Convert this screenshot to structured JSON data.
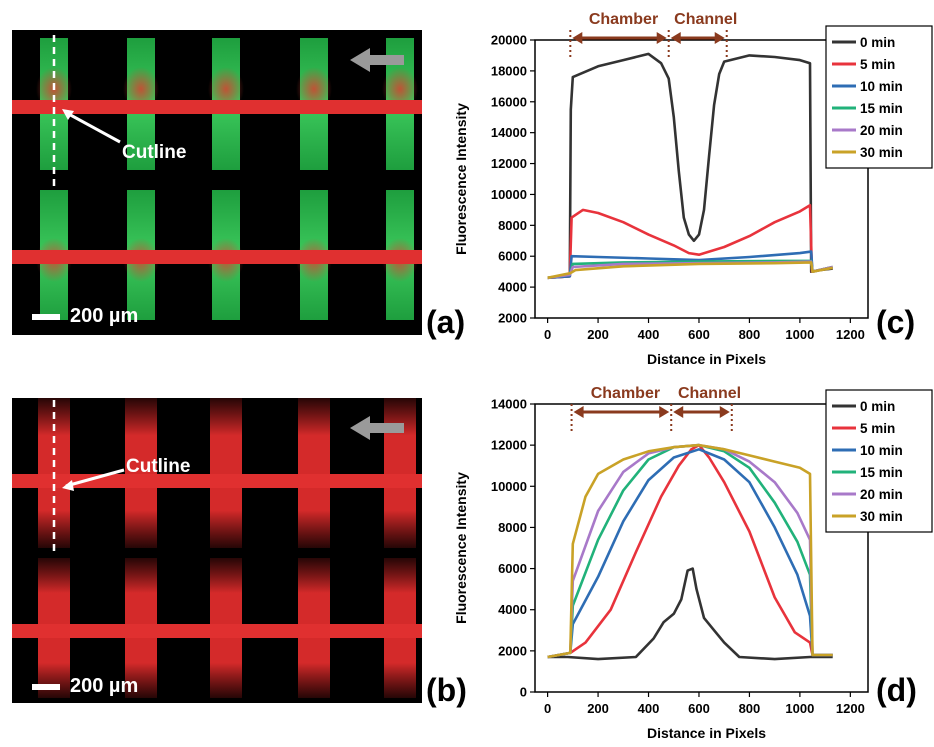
{
  "panels": {
    "a": {
      "letter": "(a)",
      "cutline_label": "Cutline",
      "scale_label": "200 µm"
    },
    "b": {
      "letter": "(b)",
      "cutline_label": "Cutline",
      "scale_label": "200 µm"
    },
    "c": {
      "letter": "(c)"
    },
    "d": {
      "letter": "(d)"
    }
  },
  "colors": {
    "0 min": "#333333",
    "5 min": "#e8333c",
    "10 min": "#2e6db4",
    "15 min": "#21b27a",
    "20 min": "#a879c9",
    "30 min": "#c9a227",
    "annotation": "#8a3a1e",
    "green_chamber": "#22b24c",
    "red_channel": "#e03030"
  },
  "chart_data": [
    {
      "id": "c",
      "type": "line",
      "xlabel": "Distance in Pixels",
      "ylabel": "Fluorescence Intensity",
      "xlim": [
        -50,
        1270
      ],
      "ylim": [
        2000,
        20000
      ],
      "xticks": [
        0,
        200,
        400,
        600,
        800,
        1000,
        1200
      ],
      "yticks": [
        2000,
        4000,
        6000,
        8000,
        10000,
        12000,
        14000,
        16000,
        18000,
        20000
      ],
      "annotations": {
        "chamber": "Chamber",
        "channel": "Channel",
        "chamber_range": [
          90,
          480
        ],
        "channel_range": [
          480,
          710
        ]
      },
      "legend": "right",
      "series": [
        {
          "name": "0 min",
          "points": [
            [
              0,
              4600
            ],
            [
              88,
              4700
            ],
            [
              92,
              15500
            ],
            [
              100,
              17600
            ],
            [
              200,
              18300
            ],
            [
              300,
              18700
            ],
            [
              400,
              19100
            ],
            [
              450,
              18500
            ],
            [
              480,
              17500
            ],
            [
              500,
              15000
            ],
            [
              520,
              11500
            ],
            [
              540,
              8500
            ],
            [
              560,
              7400
            ],
            [
              580,
              7000
            ],
            [
              600,
              7400
            ],
            [
              620,
              9000
            ],
            [
              640,
              12500
            ],
            [
              660,
              15800
            ],
            [
              680,
              17800
            ],
            [
              700,
              18600
            ],
            [
              800,
              19000
            ],
            [
              900,
              18900
            ],
            [
              1000,
              18700
            ],
            [
              1040,
              18500
            ],
            [
              1045,
              5000
            ],
            [
              1080,
              5100
            ],
            [
              1130,
              5200
            ]
          ]
        },
        {
          "name": "5 min",
          "points": [
            [
              0,
              4600
            ],
            [
              88,
              4700
            ],
            [
              95,
              8500
            ],
            [
              140,
              9000
            ],
            [
              200,
              8800
            ],
            [
              300,
              8200
            ],
            [
              400,
              7400
            ],
            [
              500,
              6700
            ],
            [
              560,
              6200
            ],
            [
              600,
              6100
            ],
            [
              700,
              6600
            ],
            [
              800,
              7300
            ],
            [
              900,
              8200
            ],
            [
              1000,
              8900
            ],
            [
              1040,
              9300
            ],
            [
              1048,
              5000
            ],
            [
              1130,
              5300
            ]
          ]
        },
        {
          "name": "10 min",
          "points": [
            [
              0,
              4600
            ],
            [
              88,
              4700
            ],
            [
              95,
              6000
            ],
            [
              200,
              5950
            ],
            [
              400,
              5850
            ],
            [
              600,
              5750
            ],
            [
              800,
              5950
            ],
            [
              1000,
              6200
            ],
            [
              1045,
              6300
            ],
            [
              1050,
              5000
            ],
            [
              1130,
              5300
            ]
          ]
        },
        {
          "name": "15 min",
          "points": [
            [
              0,
              4600
            ],
            [
              88,
              4800
            ],
            [
              100,
              5500
            ],
            [
              300,
              5600
            ],
            [
              600,
              5650
            ],
            [
              900,
              5700
            ],
            [
              1045,
              5700
            ],
            [
              1050,
              5000
            ],
            [
              1130,
              5300
            ]
          ]
        },
        {
          "name": "20 min",
          "points": [
            [
              0,
              4600
            ],
            [
              88,
              4800
            ],
            [
              100,
              5300
            ],
            [
              300,
              5500
            ],
            [
              600,
              5550
            ],
            [
              900,
              5600
            ],
            [
              1045,
              5650
            ],
            [
              1050,
              5000
            ],
            [
              1130,
              5300
            ]
          ]
        },
        {
          "name": "30 min",
          "points": [
            [
              0,
              4600
            ],
            [
              90,
              4900
            ],
            [
              110,
              5100
            ],
            [
              300,
              5350
            ],
            [
              600,
              5500
            ],
            [
              900,
              5550
            ],
            [
              1045,
              5600
            ],
            [
              1050,
              5000
            ],
            [
              1130,
              5250
            ]
          ]
        }
      ]
    },
    {
      "id": "d",
      "type": "line",
      "xlabel": "Distance in Pixels",
      "ylabel": "Fluorescence Intensity",
      "xlim": [
        -50,
        1270
      ],
      "ylim": [
        0,
        14000
      ],
      "xticks": [
        0,
        200,
        400,
        600,
        800,
        1000,
        1200
      ],
      "yticks": [
        0,
        2000,
        4000,
        6000,
        8000,
        10000,
        12000,
        14000
      ],
      "annotations": {
        "chamber": "Chamber",
        "channel": "Channel",
        "chamber_range": [
          95,
          490
        ],
        "channel_range": [
          490,
          730
        ]
      },
      "legend": "right",
      "series": [
        {
          "name": "0 min",
          "points": [
            [
              0,
              1700
            ],
            [
              80,
              1700
            ],
            [
              200,
              1600
            ],
            [
              350,
              1700
            ],
            [
              420,
              2600
            ],
            [
              460,
              3400
            ],
            [
              500,
              3800
            ],
            [
              530,
              4500
            ],
            [
              555,
              5900
            ],
            [
              575,
              6000
            ],
            [
              590,
              5000
            ],
            [
              620,
              3600
            ],
            [
              660,
              3000
            ],
            [
              700,
              2400
            ],
            [
              760,
              1700
            ],
            [
              900,
              1600
            ],
            [
              1040,
              1700
            ],
            [
              1060,
              1700
            ],
            [
              1130,
              1700
            ]
          ]
        },
        {
          "name": "5 min",
          "points": [
            [
              0,
              1700
            ],
            [
              90,
              1900
            ],
            [
              150,
              2400
            ],
            [
              250,
              4000
            ],
            [
              350,
              6800
            ],
            [
              450,
              9500
            ],
            [
              520,
              11000
            ],
            [
              570,
              11800
            ],
            [
              600,
              12000
            ],
            [
              640,
              11400
            ],
            [
              700,
              10200
            ],
            [
              800,
              7800
            ],
            [
              900,
              4600
            ],
            [
              980,
              2900
            ],
            [
              1040,
              2400
            ],
            [
              1050,
              1800
            ],
            [
              1130,
              1800
            ]
          ]
        },
        {
          "name": "10 min",
          "points": [
            [
              0,
              1700
            ],
            [
              90,
              1900
            ],
            [
              100,
              3300
            ],
            [
              200,
              5600
            ],
            [
              300,
              8300
            ],
            [
              400,
              10300
            ],
            [
              500,
              11400
            ],
            [
              600,
              11800
            ],
            [
              700,
              11300
            ],
            [
              800,
              10200
            ],
            [
              900,
              8000
            ],
            [
              990,
              5700
            ],
            [
              1040,
              3700
            ],
            [
              1050,
              1800
            ],
            [
              1130,
              1800
            ]
          ]
        },
        {
          "name": "15 min",
          "points": [
            [
              0,
              1700
            ],
            [
              90,
              1900
            ],
            [
              100,
              4200
            ],
            [
              200,
              7400
            ],
            [
              300,
              9800
            ],
            [
              400,
              11300
            ],
            [
              500,
              11900
            ],
            [
              600,
              12000
            ],
            [
              700,
              11700
            ],
            [
              800,
              10900
            ],
            [
              900,
              9200
            ],
            [
              990,
              7300
            ],
            [
              1040,
              5700
            ],
            [
              1050,
              1800
            ],
            [
              1130,
              1800
            ]
          ]
        },
        {
          "name": "20 min",
          "points": [
            [
              0,
              1700
            ],
            [
              90,
              1900
            ],
            [
              100,
              5400
            ],
            [
              200,
              8800
            ],
            [
              300,
              10700
            ],
            [
              400,
              11600
            ],
            [
              500,
              11900
            ],
            [
              600,
              12000
            ],
            [
              700,
              11800
            ],
            [
              800,
              11200
            ],
            [
              900,
              10200
            ],
            [
              990,
              8700
            ],
            [
              1040,
              7400
            ],
            [
              1050,
              1800
            ],
            [
              1130,
              1800
            ]
          ]
        },
        {
          "name": "30 min",
          "points": [
            [
              0,
              1700
            ],
            [
              90,
              1900
            ],
            [
              100,
              7200
            ],
            [
              150,
              9500
            ],
            [
              200,
              10600
            ],
            [
              300,
              11300
            ],
            [
              400,
              11700
            ],
            [
              500,
              11900
            ],
            [
              600,
              12000
            ],
            [
              700,
              11800
            ],
            [
              800,
              11500
            ],
            [
              900,
              11200
            ],
            [
              1000,
              10900
            ],
            [
              1040,
              10600
            ],
            [
              1050,
              1800
            ],
            [
              1130,
              1800
            ]
          ]
        }
      ]
    }
  ]
}
